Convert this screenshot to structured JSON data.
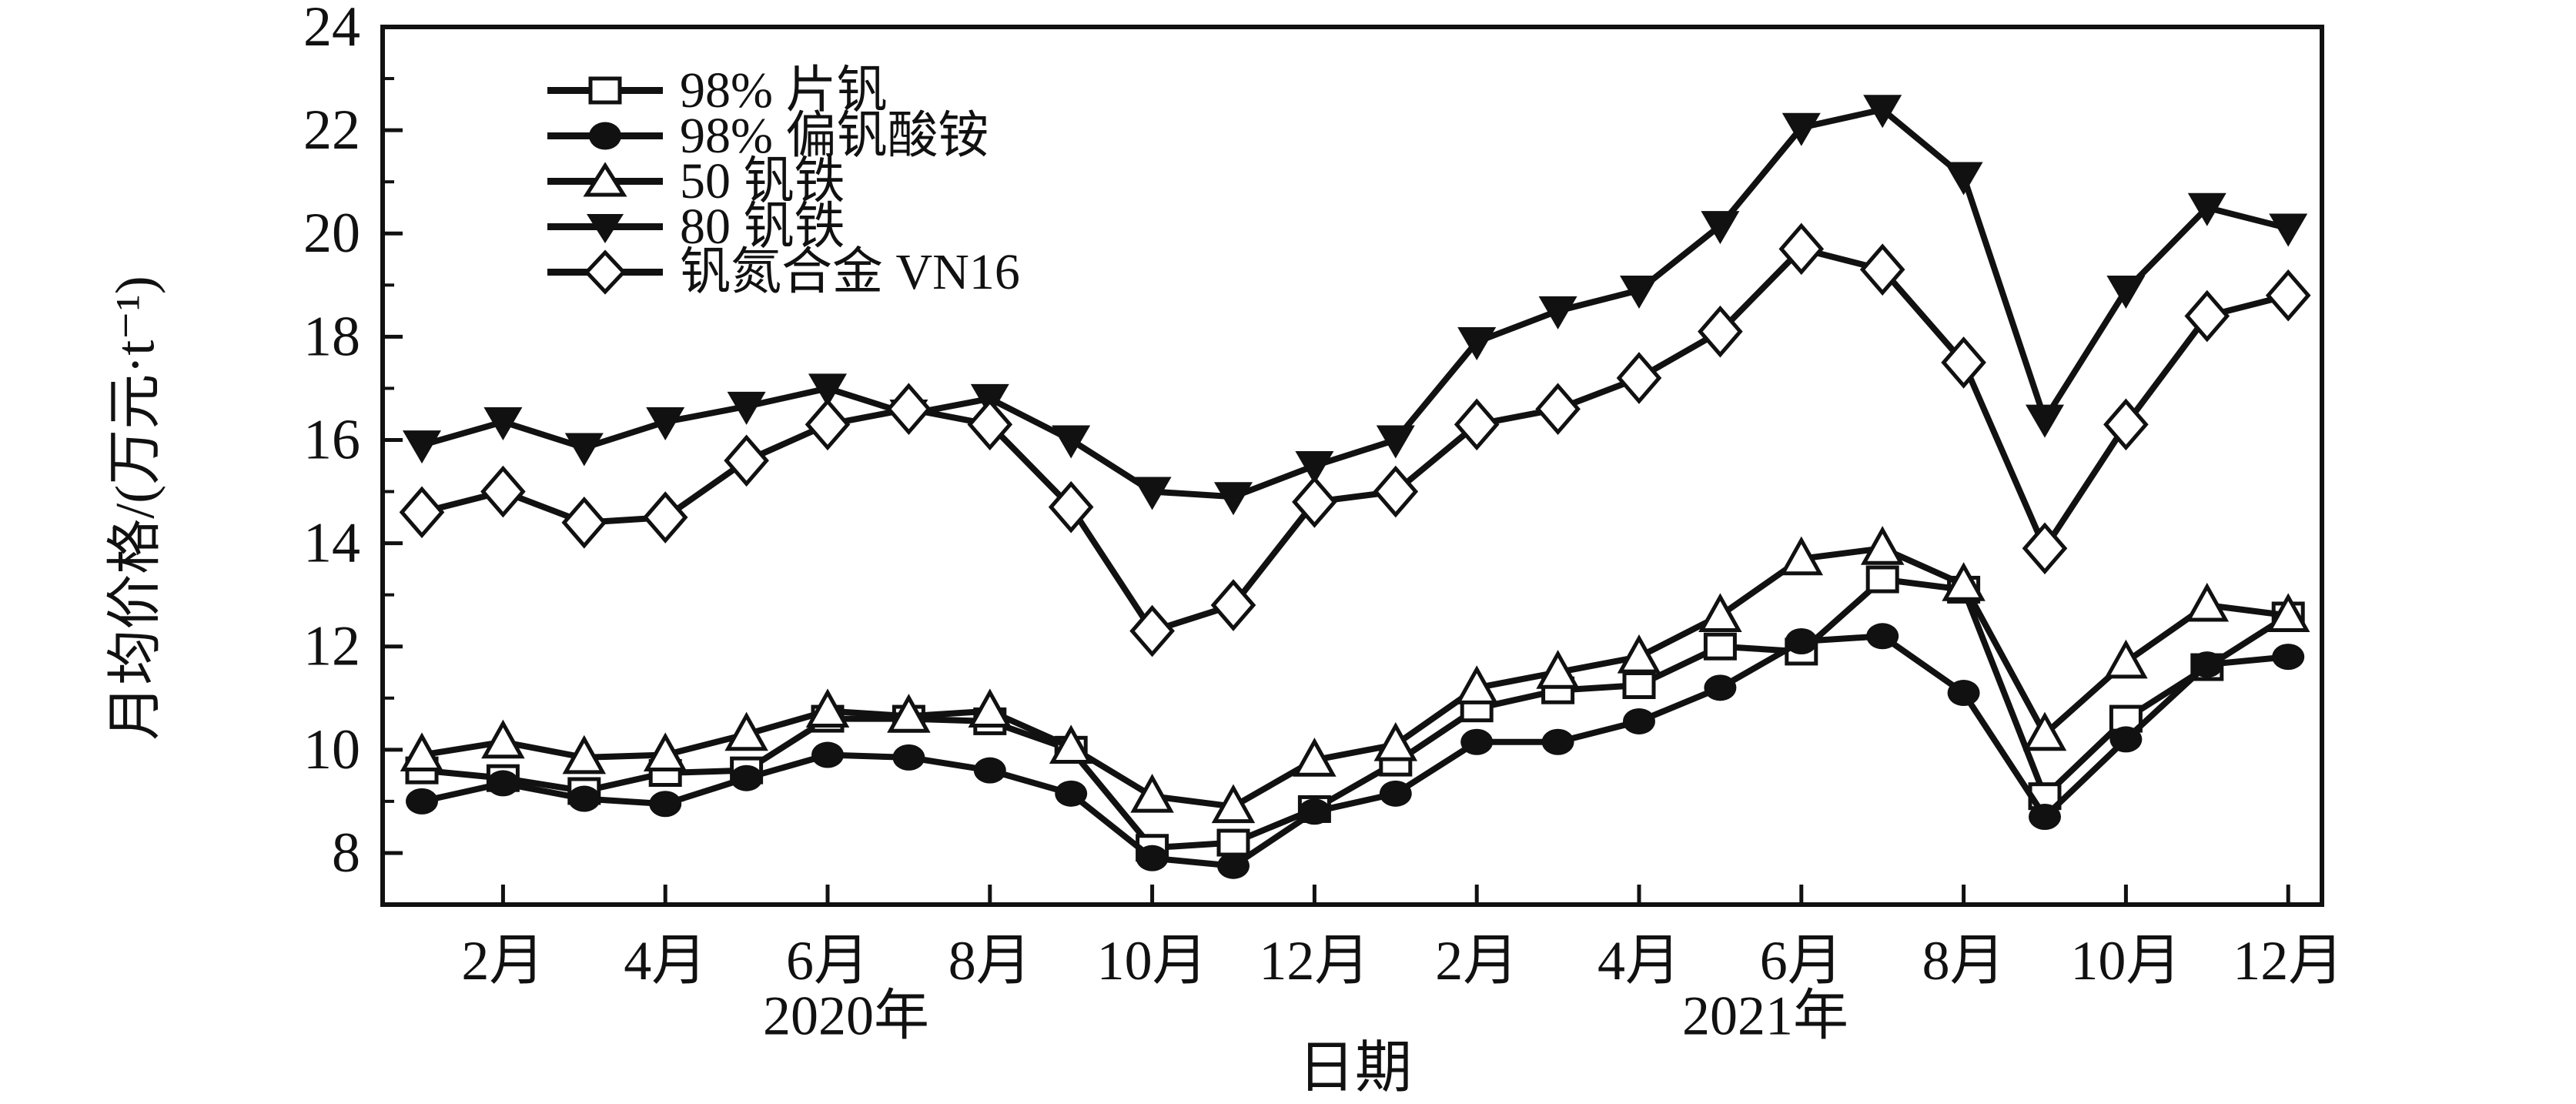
{
  "figure": {
    "background": "#ffffff",
    "ink_color": "#111111"
  },
  "chart_data": {
    "type": "line",
    "title": "",
    "xlabel": "日期",
    "ylabel": "月均价格/(万元·t⁻¹)",
    "ylim": [
      7,
      24
    ],
    "yticks_major": [
      8,
      10,
      12,
      14,
      16,
      18,
      20,
      22,
      24
    ],
    "yticks_minor": [
      9,
      11,
      13,
      15,
      17,
      19,
      21,
      23
    ],
    "grid": false,
    "legend_position": "upper-left-inside",
    "months": 24,
    "categories": [
      "2020-1月",
      "2020-2月",
      "2020-3月",
      "2020-4月",
      "2020-5月",
      "2020-6月",
      "2020-7月",
      "2020-8月",
      "2020-9月",
      "2020-10月",
      "2020-11月",
      "2020-12月",
      "2021-1月",
      "2021-2月",
      "2021-3月",
      "2021-4月",
      "2021-5月",
      "2021-6月",
      "2021-7月",
      "2021-8月",
      "2021-9月",
      "2021-10月",
      "2021-11月",
      "2021-12月"
    ],
    "x_tick_months": [
      2,
      4,
      6,
      8,
      10,
      12,
      14,
      16,
      18,
      20,
      22,
      24
    ],
    "x_tick_labels": [
      "2月",
      "4月",
      "6月",
      "8月",
      "10月",
      "12月",
      "2月",
      "4月",
      "6月",
      "8月",
      "10月",
      "12月"
    ],
    "year_labels": [
      {
        "text": "2020年"
      },
      {
        "text": "2021年"
      }
    ],
    "series": [
      {
        "name": "98% 片钒",
        "marker": "square-open",
        "values": [
          9.6,
          9.45,
          9.2,
          9.55,
          9.6,
          10.6,
          10.6,
          10.55,
          10.0,
          8.1,
          8.2,
          8.85,
          9.75,
          10.8,
          11.15,
          11.25,
          12.0,
          11.9,
          13.3,
          13.1,
          9.1,
          10.6,
          11.6,
          12.6
        ]
      },
      {
        "name": "98% 偏钒酸铵",
        "marker": "circle-filled",
        "values": [
          9.0,
          9.35,
          9.05,
          8.95,
          9.45,
          9.9,
          9.85,
          9.6,
          9.15,
          7.9,
          7.75,
          8.8,
          9.15,
          10.15,
          10.15,
          10.55,
          11.2,
          12.1,
          12.2,
          11.1,
          8.7,
          10.2,
          11.65,
          11.8
        ]
      },
      {
        "name": "50 钒铁",
        "marker": "triangle-up-open",
        "values": [
          9.9,
          10.15,
          9.85,
          9.9,
          10.3,
          10.75,
          10.65,
          10.75,
          10.05,
          9.1,
          8.9,
          9.8,
          10.1,
          11.2,
          11.5,
          11.8,
          12.6,
          13.7,
          13.9,
          13.2,
          10.3,
          11.7,
          12.8,
          12.6
        ]
      },
      {
        "name": "80 钒铁",
        "marker": "triangle-down-filled",
        "values": [
          15.9,
          16.35,
          15.85,
          16.35,
          16.65,
          17.0,
          16.5,
          16.8,
          16.0,
          15.0,
          14.9,
          15.5,
          16.0,
          17.9,
          18.5,
          18.9,
          20.15,
          22.05,
          22.4,
          21.1,
          16.4,
          18.9,
          20.5,
          20.1
        ]
      },
      {
        "name": "钒氮合金 VN16",
        "marker": "diamond-open",
        "values": [
          14.6,
          15.0,
          14.4,
          14.5,
          15.6,
          16.3,
          16.6,
          16.3,
          14.7,
          12.3,
          12.8,
          14.8,
          15.0,
          16.3,
          16.6,
          17.2,
          18.1,
          19.7,
          19.3,
          17.5,
          13.9,
          16.3,
          18.4,
          18.8
        ]
      }
    ]
  }
}
